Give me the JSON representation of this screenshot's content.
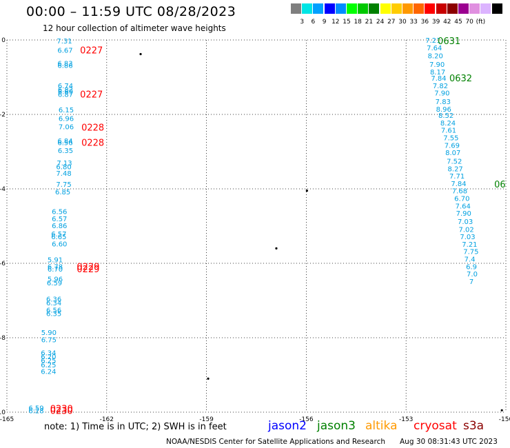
{
  "header": {
    "title": "00:00 – 11:59 UTC 08/28/2023",
    "subtitle": "12 hour collection of altimeter wave heights"
  },
  "colorbar": {
    "swatches": [
      "#7f7f7f",
      "#00e5e5",
      "#00a0ff",
      "#0000ff",
      "#008cff",
      "#00ff00",
      "#00c800",
      "#008000",
      "#ffff00",
      "#ffcc00",
      "#ff9900",
      "#ff6600",
      "#ff0000",
      "#c80000",
      "#8b0000",
      "#9b0090",
      "#e090e0",
      "#dcb4ff",
      "#000000"
    ],
    "labels": [
      "3",
      "6",
      "9",
      "12",
      "15",
      "18",
      "21",
      "24",
      "27",
      "30",
      "33",
      "36",
      "39",
      "42",
      "45",
      "70",
      "(ft)"
    ]
  },
  "map": {
    "x_ticks": [
      "-165",
      "-162",
      "-159",
      "-156",
      "-153",
      "-150"
    ],
    "y_ticks": [
      "0",
      "-2",
      "-4",
      "-6",
      "-8",
      "-10"
    ],
    "lon_range": [
      -165,
      -150
    ],
    "lat_range": [
      -10,
      0
    ]
  },
  "track_left": [
    {
      "lat": -0.02,
      "v": "7.31"
    },
    {
      "lat": -0.27,
      "v": "6.67"
    },
    {
      "lat": -0.62,
      "v": "6.83"
    },
    {
      "lat": -0.68,
      "v": "6.86"
    },
    {
      "lat": -1.22,
      "v": "6.74"
    },
    {
      "lat": -1.32,
      "v": "6.82"
    },
    {
      "lat": -1.38,
      "v": "6.69"
    },
    {
      "lat": -1.45,
      "v": "6.87"
    },
    {
      "lat": -1.87,
      "v": "6.15"
    },
    {
      "lat": -2.1,
      "v": "6.96"
    },
    {
      "lat": -2.32,
      "v": "7.06"
    },
    {
      "lat": -2.7,
      "v": "6.84"
    },
    {
      "lat": -2.75,
      "v": "6.56"
    },
    {
      "lat": -2.96,
      "v": "6.35"
    },
    {
      "lat": -3.3,
      "v": "7.13"
    },
    {
      "lat": -3.4,
      "v": "6.80"
    },
    {
      "lat": -3.57,
      "v": "7.48"
    },
    {
      "lat": -3.87,
      "v": "7.75"
    },
    {
      "lat": -4.07,
      "v": "6.85"
    },
    {
      "lat": -4.6,
      "v": "6.56"
    },
    {
      "lat": -4.8,
      "v": "6.57"
    },
    {
      "lat": -4.98,
      "v": "6.86"
    },
    {
      "lat": -5.2,
      "v": "6.57"
    },
    {
      "lat": -5.28,
      "v": "6.65"
    },
    {
      "lat": -5.47,
      "v": "6.60"
    },
    {
      "lat": -5.9,
      "v": "5.91"
    },
    {
      "lat": -6.08,
      "v": "6.78"
    },
    {
      "lat": -6.15,
      "v": "6.70"
    },
    {
      "lat": -6.42,
      "v": "5.96"
    },
    {
      "lat": -6.52,
      "v": "6.59"
    },
    {
      "lat": -6.95,
      "v": "6.36"
    },
    {
      "lat": -7.06,
      "v": "6.34"
    },
    {
      "lat": -7.25,
      "v": "6.56"
    },
    {
      "lat": -7.34,
      "v": "6.35"
    },
    {
      "lat": -7.85,
      "v": "5.90"
    },
    {
      "lat": -8.05,
      "v": "6.75"
    },
    {
      "lat": -8.4,
      "v": "6.34"
    },
    {
      "lat": -8.5,
      "v": "6.20"
    },
    {
      "lat": -8.6,
      "v": "6.25"
    },
    {
      "lat": -8.72,
      "v": "6.25"
    },
    {
      "lat": -8.9,
      "v": "6.24"
    },
    {
      "lat": -9.88,
      "v": "6.59"
    },
    {
      "lat": -9.95,
      "v": "6.28"
    }
  ],
  "track_left_lon": [
    -163.5,
    -163.48,
    -163.48,
    -163.48,
    -163.47,
    -163.47,
    -163.47,
    -163.47,
    -163.45,
    -163.45,
    -163.45,
    -163.48,
    -163.48,
    -163.47,
    -163.5,
    -163.52,
    -163.52,
    -163.52,
    -163.55,
    -163.65,
    -163.65,
    -163.65,
    -163.67,
    -163.67,
    -163.65,
    -163.78,
    -163.78,
    -163.78,
    -163.78,
    -163.8,
    -163.82,
    -163.82,
    -163.82,
    -163.82,
    -163.97,
    -163.97,
    -163.98,
    -163.98,
    -163.98,
    -163.98,
    -163.98,
    -164.35,
    -164.35
  ],
  "track_left_labels": [
    {
      "lat": -0.27,
      "lon": -162.8,
      "t": "0227"
    },
    {
      "lat": -1.45,
      "lon": -162.8,
      "t": "0227"
    },
    {
      "lat": -2.34,
      "lon": -162.76,
      "t": "0228"
    },
    {
      "lat": -2.75,
      "lon": -162.76,
      "t": "0228"
    },
    {
      "lat": -6.08,
      "lon": -162.9,
      "t": "0229"
    },
    {
      "lat": -6.15,
      "lon": -162.9,
      "t": "0229"
    },
    {
      "lat": -9.9,
      "lon": -163.7,
      "t": "0230"
    },
    {
      "lat": -9.95,
      "lon": -163.7,
      "t": "0230"
    }
  ],
  "track_right": [
    {
      "lat": 0.0,
      "lon": -152.42,
      "v": "7.21"
    },
    {
      "lat": -0.2,
      "lon": -152.38,
      "v": "7.64"
    },
    {
      "lat": -0.42,
      "lon": -152.35,
      "v": "8.20"
    },
    {
      "lat": -0.65,
      "lon": -152.3,
      "v": "7.90"
    },
    {
      "lat": -0.85,
      "lon": -152.28,
      "v": "8.17"
    },
    {
      "lat": -1.02,
      "lon": -152.25,
      "v": "7.84"
    },
    {
      "lat": -1.22,
      "lon": -152.2,
      "v": "7.82"
    },
    {
      "lat": -1.42,
      "lon": -152.15,
      "v": "7.90"
    },
    {
      "lat": -1.65,
      "lon": -152.12,
      "v": "7.83"
    },
    {
      "lat": -1.85,
      "lon": -152.1,
      "v": "8.96"
    },
    {
      "lat": -2.02,
      "lon": -152.03,
      "v": "8.52"
    },
    {
      "lat": -2.22,
      "lon": -151.97,
      "v": "8.24"
    },
    {
      "lat": -2.42,
      "lon": -151.95,
      "v": "7.61"
    },
    {
      "lat": -2.62,
      "lon": -151.88,
      "v": "7.55"
    },
    {
      "lat": -2.82,
      "lon": -151.85,
      "v": "7.69"
    },
    {
      "lat": -3.02,
      "lon": -151.82,
      "v": "8.07"
    },
    {
      "lat": -3.25,
      "lon": -151.78,
      "v": "7.52"
    },
    {
      "lat": -3.45,
      "lon": -151.75,
      "v": "8.27"
    },
    {
      "lat": -3.65,
      "lon": -151.7,
      "v": "7.71"
    },
    {
      "lat": -3.85,
      "lon": -151.65,
      "v": "7.84"
    },
    {
      "lat": -4.05,
      "lon": -151.62,
      "v": "7.68"
    },
    {
      "lat": -4.25,
      "lon": -151.55,
      "v": "6.70"
    },
    {
      "lat": -4.45,
      "lon": -151.52,
      "v": "7.64"
    },
    {
      "lat": -4.65,
      "lon": -151.5,
      "v": "7.90"
    },
    {
      "lat": -4.87,
      "lon": -151.45,
      "v": "7.03"
    },
    {
      "lat": -5.08,
      "lon": -151.42,
      "v": "7.02"
    },
    {
      "lat": -5.28,
      "lon": -151.38,
      "v": "7.03"
    },
    {
      "lat": -5.48,
      "lon": -151.32,
      "v": "7.21"
    },
    {
      "lat": -5.68,
      "lon": -151.28,
      "v": "7.75"
    },
    {
      "lat": -5.88,
      "lon": -151.25,
      "v": "7.4"
    },
    {
      "lat": -6.08,
      "lon": -151.2,
      "v": "6.9"
    },
    {
      "lat": -6.28,
      "lon": -151.18,
      "v": "7.0"
    },
    {
      "lat": -6.48,
      "lon": -151.1,
      "v": "7"
    }
  ],
  "track_right_labels": [
    {
      "lat": -0.02,
      "lon": -152.05,
      "t": "0631"
    },
    {
      "lat": -1.02,
      "lon": -151.7,
      "t": "0632"
    },
    {
      "lat": -3.87,
      "lon": -150.35,
      "t": "06"
    }
  ],
  "islands": [
    {
      "lat": -0.38,
      "lon": -160.98
    },
    {
      "lat": -4.05,
      "lon": -155.98
    },
    {
      "lat": -5.6,
      "lon": -156.9
    },
    {
      "lat": -9.1,
      "lon": -158.95
    },
    {
      "lat": -9.95,
      "lon": -150.12
    }
  ],
  "footer": {
    "note": "note:  1) Time is in UTC;  2) SWH is in feet",
    "satellites": [
      {
        "name": "jason2",
        "color": "#0000ff"
      },
      {
        "name": "jason3",
        "color": "#008000"
      },
      {
        "name": "altika",
        "color": "#ff9900"
      },
      {
        "name": "cryosat",
        "color": "#ff0000"
      },
      {
        "name": "s3a",
        "color": "#8b0000"
      }
    ],
    "credit": "NOAA/NESDIS Center for Satellite Applications and Research",
    "timestamp": "Aug 30 08:31:43 UTC 2023"
  }
}
